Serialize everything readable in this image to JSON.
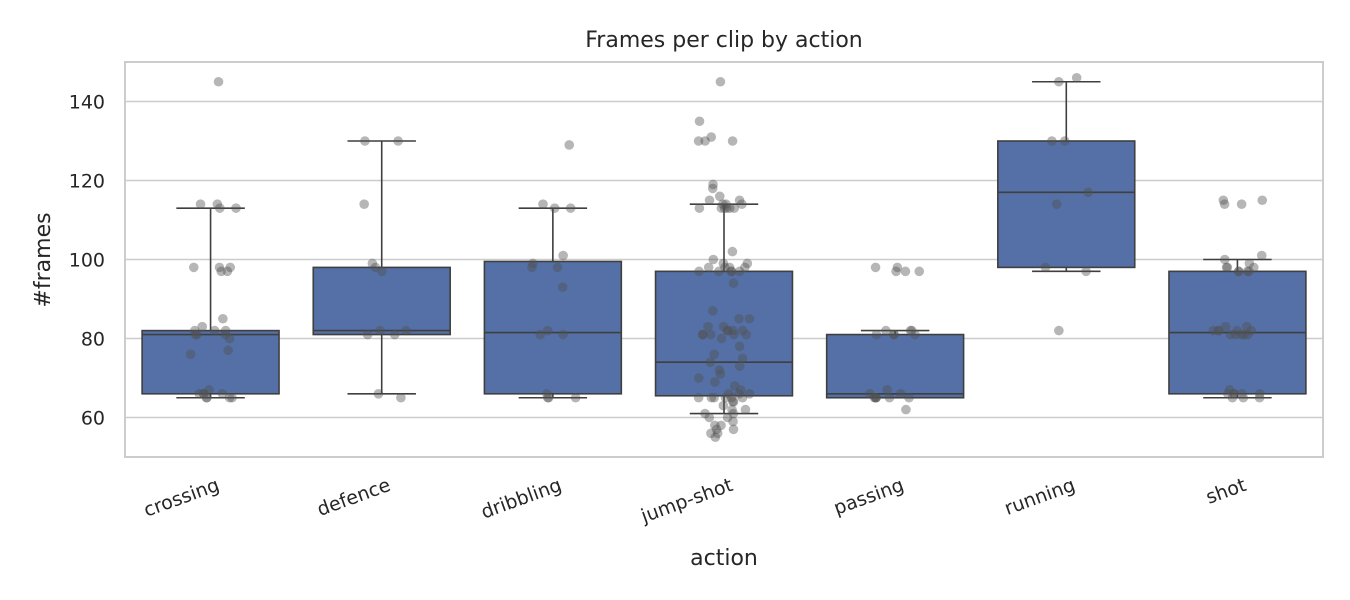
{
  "chart_data": {
    "type": "box",
    "title": "Frames per clip by action",
    "xlabel": "action",
    "ylabel": "#frames",
    "ylim": [
      50,
      150
    ],
    "yticks": [
      60,
      80,
      100,
      120,
      140
    ],
    "grid": true,
    "legend": "none",
    "box_color": "#5470a6",
    "point_color": "#505050",
    "categories": [
      "crossing",
      "defence",
      "dribbling",
      "jump-shot",
      "passing",
      "running",
      "shot"
    ],
    "boxes": [
      {
        "category": "crossing",
        "whisker_low": 65,
        "q1": 66,
        "median": 81,
        "q3": 82,
        "whisker_high": 113,
        "outliers": [
          145
        ]
      },
      {
        "category": "defence",
        "whisker_low": 66,
        "q1": 81,
        "median": 82,
        "q3": 98,
        "whisker_high": 130,
        "outliers": []
      },
      {
        "category": "dribbling",
        "whisker_low": 65,
        "q1": 66,
        "median": 81.5,
        "q3": 99.5,
        "whisker_high": 113,
        "outliers": []
      },
      {
        "category": "jump-shot",
        "whisker_low": 61,
        "q1": 65.5,
        "median": 74,
        "q3": 97,
        "whisker_high": 114,
        "outliers": [
          145
        ]
      },
      {
        "category": "passing",
        "whisker_low": 65,
        "q1": 65,
        "median": 66,
        "q3": 81,
        "whisker_high": 82,
        "outliers": []
      },
      {
        "category": "running",
        "whisker_low": 97,
        "q1": 98,
        "median": 117,
        "q3": 130,
        "whisker_high": 145,
        "outliers": []
      },
      {
        "category": "shot",
        "whisker_low": 65,
        "q1": 66,
        "median": 81.5,
        "q3": 97,
        "whisker_high": 100,
        "outliers": []
      }
    ],
    "points": [
      {
        "category": "crossing",
        "values": [
          145,
          114,
          114,
          113,
          113,
          98,
          98,
          98,
          97,
          97,
          85,
          83,
          82,
          82,
          82,
          81,
          81,
          81,
          80,
          77,
          76,
          67,
          66,
          66,
          66,
          66,
          65,
          65,
          65,
          65
        ]
      },
      {
        "category": "defence",
        "values": [
          130,
          130,
          114,
          99,
          98,
          97,
          82,
          82,
          81,
          81,
          66,
          65
        ]
      },
      {
        "category": "dribbling",
        "values": [
          129,
          114,
          113,
          113,
          101,
          99,
          98,
          98,
          93,
          82,
          81,
          81,
          66,
          65,
          65,
          65
        ]
      },
      {
        "category": "jump-shot",
        "values": [
          145,
          135,
          131,
          130,
          130,
          130,
          119,
          118,
          116,
          115,
          115,
          114,
          114,
          114,
          113,
          113,
          113,
          113,
          113,
          113,
          102,
          100,
          99,
          99,
          98,
          98,
          98,
          98,
          97,
          97,
          97,
          97,
          97,
          94,
          87,
          85,
          85,
          83,
          83,
          82,
          82,
          82,
          82,
          81,
          81,
          81,
          81,
          81,
          80,
          78,
          76,
          75,
          74,
          73,
          72,
          71,
          70,
          69,
          68,
          67,
          66,
          66,
          66,
          65,
          65,
          65,
          65,
          65,
          65,
          64,
          64,
          63,
          62,
          62,
          61,
          61,
          60,
          60,
          59,
          58,
          58,
          57,
          57,
          56,
          56,
          55
        ]
      },
      {
        "category": "passing",
        "values": [
          98,
          98,
          97,
          97,
          97,
          82,
          82,
          82,
          81,
          81,
          81,
          81,
          67,
          66,
          66,
          65,
          65,
          65,
          65,
          65,
          65,
          62
        ]
      },
      {
        "category": "running",
        "values": [
          146,
          145,
          130,
          130,
          117,
          114,
          98,
          97,
          82
        ]
      },
      {
        "category": "shot",
        "values": [
          115,
          115,
          114,
          114,
          101,
          100,
          99,
          98,
          98,
          98,
          97,
          97,
          97,
          97,
          83,
          83,
          82,
          82,
          82,
          82,
          82,
          81,
          81,
          81,
          81,
          81,
          67,
          66,
          66,
          66,
          66,
          66,
          65,
          65,
          65
        ]
      }
    ]
  }
}
